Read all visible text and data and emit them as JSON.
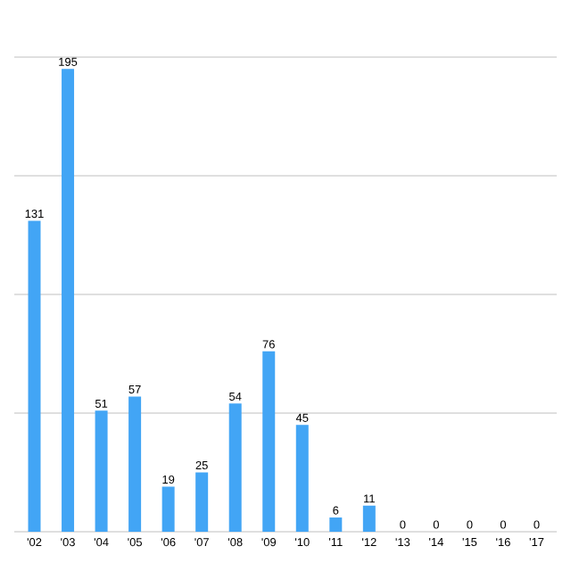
{
  "chart_data": {
    "type": "bar",
    "categories": [
      "'02",
      "'03",
      "'04",
      "'05",
      "'06",
      "'07",
      "'08",
      "'09",
      "'10",
      "'11",
      "'12",
      "'13",
      "'14",
      "'15",
      "'16",
      "'17"
    ],
    "values": [
      131,
      195,
      51,
      57,
      19,
      25,
      54,
      76,
      45,
      6,
      11,
      0,
      0,
      0,
      0,
      0
    ],
    "color": "#42a5f5",
    "ylim": [
      0,
      200
    ],
    "yticks": [
      {
        "value": 0,
        "label": null
      },
      {
        "value": 50,
        "label": null
      },
      {
        "value": 100,
        "label": null
      },
      {
        "value": 150,
        "label": null
      },
      {
        "value": 200,
        "label": null
      }
    ],
    "grid": "y",
    "tick_labels": "x",
    "data_labels": true
  }
}
